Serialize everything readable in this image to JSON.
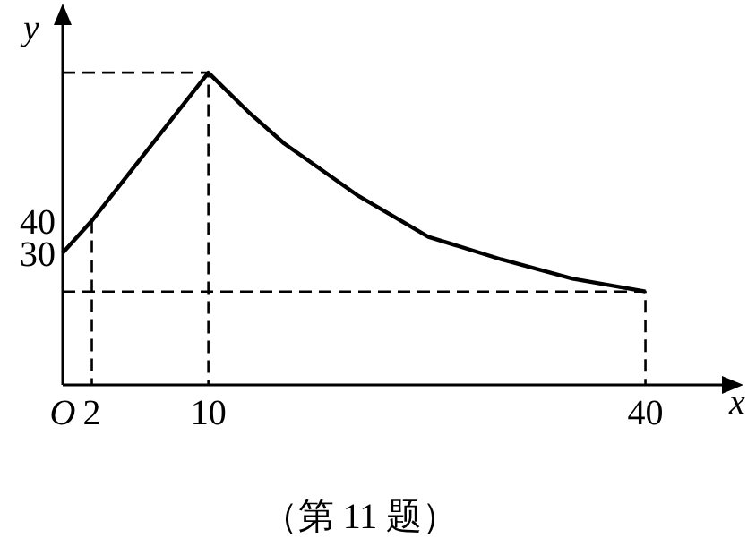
{
  "chart_data": {
    "type": "line",
    "xlabel": "x",
    "ylabel": "y",
    "xlim": [
      0,
      45.5
    ],
    "ylim": [
      -11,
      103
    ],
    "xticks": [
      {
        "value": 0,
        "label": "O"
      },
      2,
      10,
      40
    ],
    "yticks": [
      30,
      40
    ],
    "annotations": [
      "（第 11 题）"
    ],
    "series": [
      {
        "color": "#000000",
        "line_style": "solid",
        "x": [
          0,
          2,
          10,
          12.7,
          15.2,
          20.2,
          25.1,
          30.1,
          35,
          40
        ],
        "values": [
          30,
          40,
          86,
          74,
          64,
          48,
          35,
          28,
          22,
          18
        ]
      },
      {
        "color": "#000000",
        "line_style": "dashed",
        "x": [
          0,
          10,
          10
        ],
        "values": [
          86,
          86,
          -11
        ]
      },
      {
        "color": "#000000",
        "line_style": "dashed",
        "x": [
          2,
          2
        ],
        "values": [
          40,
          -11
        ]
      },
      {
        "color": "#000000",
        "line_style": "dashed",
        "x": [
          0,
          40,
          40
        ],
        "values": [
          18,
          18,
          -11
        ]
      }
    ]
  }
}
